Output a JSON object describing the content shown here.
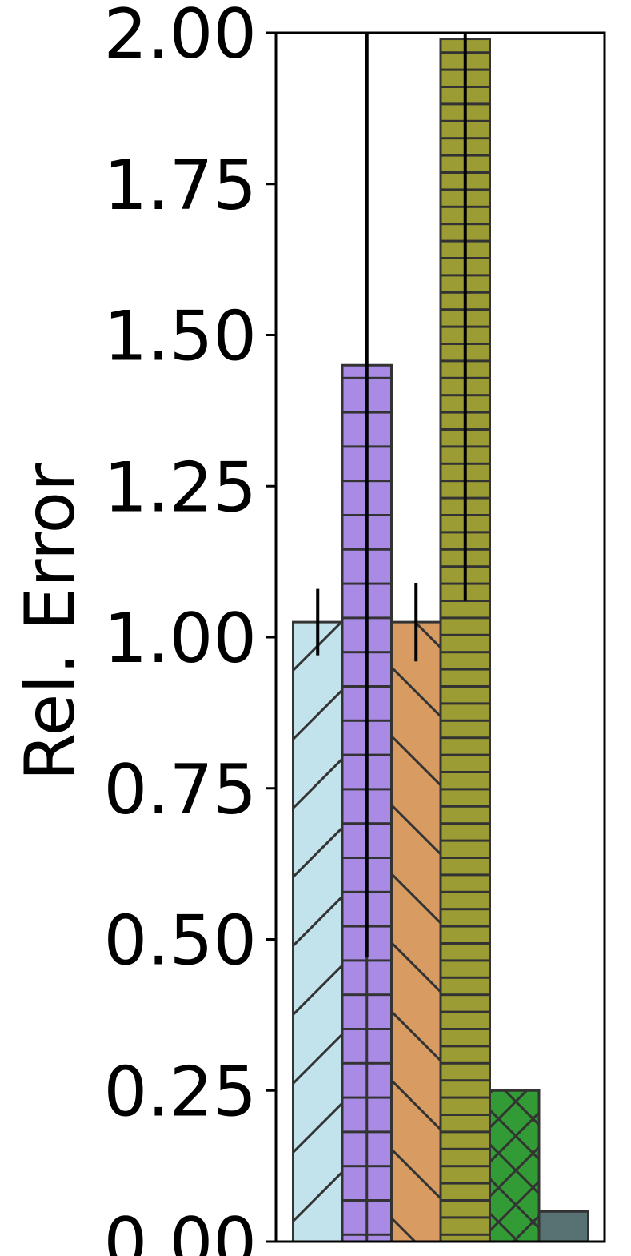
{
  "chart_data": {
    "type": "bar",
    "ylabel": "Rel. Error",
    "ylim": [
      0,
      2.0
    ],
    "yticks": [
      "0.00",
      "0.25",
      "0.50",
      "0.75",
      "1.00",
      "1.25",
      "1.50",
      "1.75",
      "2.00"
    ],
    "grid": false,
    "series": [
      {
        "value": 1.025,
        "err_low": 0.97,
        "err_high": 1.08,
        "color": "#c2e2ec",
        "hatch": "slash"
      },
      {
        "value": 1.45,
        "err_low": 0.47,
        "err_high": 2.2,
        "color": "#a98be5",
        "hatch": "grid"
      },
      {
        "value": 1.025,
        "err_low": 0.96,
        "err_high": 1.09,
        "color": "#d89c63",
        "hatch": "backslash"
      },
      {
        "value": 1.99,
        "err_low": 1.06,
        "err_high": 2.2,
        "color": "#9b9c34",
        "hatch": "hlines"
      },
      {
        "value": 0.25,
        "color": "#339b35",
        "hatch": "cross"
      },
      {
        "value": 0.05,
        "color": "#587172",
        "hatch": "none"
      }
    ]
  }
}
